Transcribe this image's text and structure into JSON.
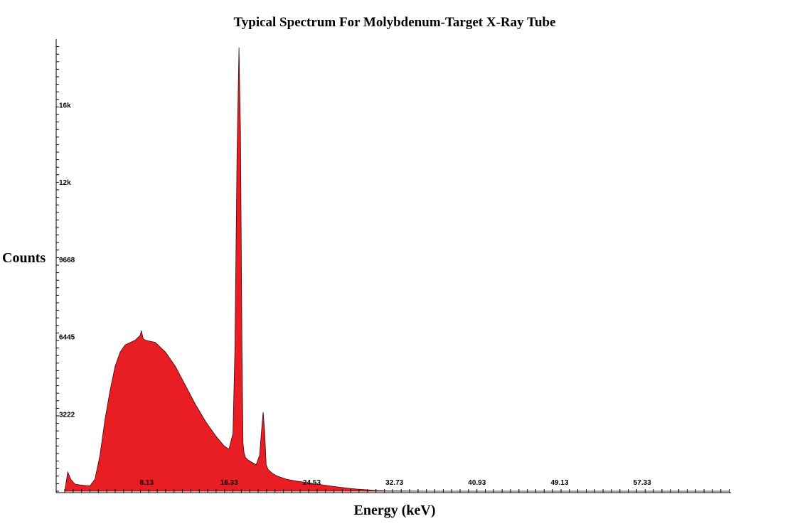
{
  "chart_data": {
    "type": "area",
    "title": "Typical Spectrum For Molybdenum-Target X-Ray Tube",
    "xlabel": "Energy (keV)",
    "ylabel": "Counts",
    "xlim": [
      0,
      66
    ],
    "ylim": [
      0,
      19000
    ],
    "x_ticks": [
      "8.13",
      "16.33",
      "24.53",
      "32.73",
      "40.93",
      "49.13",
      "57.33"
    ],
    "x_tick_values": [
      8.13,
      16.33,
      24.53,
      32.73,
      40.93,
      49.13,
      57.33
    ],
    "y_ticks": [
      "3222",
      "6445",
      "9668",
      "12k",
      "16k"
    ],
    "y_tick_values": [
      3222,
      6445,
      9668,
      12890,
      16113
    ],
    "fill_color": "#e81e24",
    "series": [
      {
        "x": [
          0,
          0.3,
          0.6,
          1.0,
          1.5,
          2.0,
          2.5,
          3.0,
          3.5,
          4.0,
          4.5,
          5.0,
          5.5,
          6.0,
          6.5,
          7.0,
          7.5,
          7.6,
          7.8,
          8.0,
          8.5,
          9.0,
          9.5,
          10.0,
          11.0,
          12.0,
          13.0,
          14.0,
          15.0,
          15.8,
          16.3,
          16.7,
          16.9,
          17.1,
          17.3,
          17.45,
          17.6,
          17.7,
          17.8,
          17.95,
          18.2,
          18.6,
          19.0,
          19.35,
          19.55,
          19.7,
          19.85,
          20.0,
          20.2,
          20.6,
          21.0,
          22.0,
          23.0,
          24.0,
          25.0,
          26.0,
          27.0,
          28.0,
          29.0,
          30.0,
          31.0,
          32.0,
          34.0,
          36.0,
          40.0,
          45.0,
          55.0,
          66.0
        ],
        "y": [
          0,
          800,
          500,
          300,
          260,
          240,
          220,
          500,
          1500,
          3000,
          4200,
          5200,
          5800,
          6100,
          6200,
          6300,
          6500,
          6700,
          6350,
          6300,
          6250,
          6200,
          6000,
          5800,
          5200,
          4400,
          3600,
          2900,
          2300,
          1900,
          1750,
          2400,
          6000,
          14000,
          18500,
          15000,
          6000,
          2000,
          1600,
          1400,
          1300,
          1200,
          1100,
          1500,
          2600,
          3300,
          2500,
          1100,
          900,
          750,
          650,
          500,
          420,
          360,
          300,
          240,
          180,
          130,
          90,
          60,
          30,
          15,
          5,
          0,
          0,
          0,
          0,
          0
        ]
      }
    ]
  }
}
